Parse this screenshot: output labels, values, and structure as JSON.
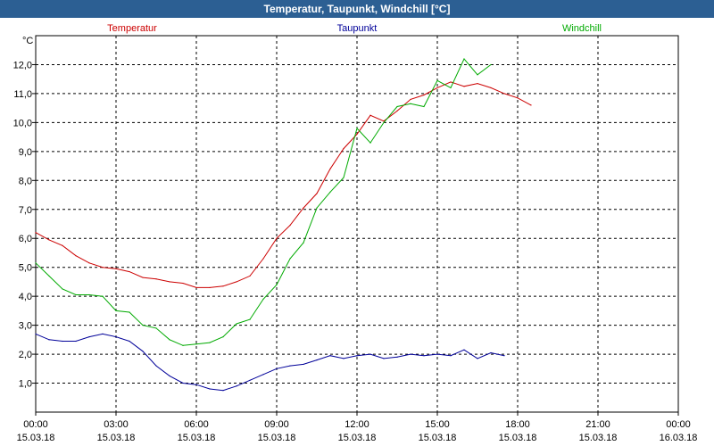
{
  "window": {
    "title": "Temperatur, Taupunkt, Windchill [°C]"
  },
  "chart_data": {
    "type": "line",
    "title": "Temperatur, Taupunkt, Windchill [°C]",
    "ylabel": "°C",
    "ylim": [
      0,
      13
    ],
    "xlim": [
      0,
      24
    ],
    "grid": true,
    "legend": "top",
    "y_ticks": [
      "1,0",
      "2,0",
      "3,0",
      "4,0",
      "5,0",
      "6,0",
      "7,0",
      "8,0",
      "9,0",
      "10,0",
      "11,0",
      "12,0"
    ],
    "x_ticks": [
      {
        "time": "00:00",
        "date": "15.03.18"
      },
      {
        "time": "03:00",
        "date": "15.03.18"
      },
      {
        "time": "06:00",
        "date": "15.03.18"
      },
      {
        "time": "09:00",
        "date": "15.03.18"
      },
      {
        "time": "12:00",
        "date": "15.03.18"
      },
      {
        "time": "15:00",
        "date": "15.03.18"
      },
      {
        "time": "18:00",
        "date": "15.03.18"
      },
      {
        "time": "21:00",
        "date": "15.03.18"
      },
      {
        "time": "00:00",
        "date": "16.03.18"
      }
    ],
    "series": [
      {
        "name": "Temperatur",
        "color": "#cc0000",
        "points": [
          [
            0,
            6.2
          ],
          [
            0.5,
            5.95
          ],
          [
            1,
            5.75
          ],
          [
            1.5,
            5.4
          ],
          [
            2,
            5.15
          ],
          [
            2.5,
            5.0
          ],
          [
            3,
            4.95
          ],
          [
            3.5,
            4.85
          ],
          [
            4,
            4.65
          ],
          [
            4.5,
            4.6
          ],
          [
            5,
            4.5
          ],
          [
            5.5,
            4.45
          ],
          [
            6,
            4.3
          ],
          [
            6.5,
            4.3
          ],
          [
            7,
            4.35
          ],
          [
            7.5,
            4.5
          ],
          [
            8,
            4.7
          ],
          [
            8.5,
            5.3
          ],
          [
            9,
            6.0
          ],
          [
            9.5,
            6.45
          ],
          [
            10,
            7.05
          ],
          [
            10.5,
            7.55
          ],
          [
            11,
            8.4
          ],
          [
            11.5,
            9.1
          ],
          [
            12,
            9.6
          ],
          [
            12.5,
            10.25
          ],
          [
            13,
            10.05
          ],
          [
            13.5,
            10.4
          ],
          [
            14,
            10.8
          ],
          [
            14.5,
            10.95
          ],
          [
            15,
            11.2
          ],
          [
            15.5,
            11.4
          ],
          [
            16,
            11.25
          ],
          [
            16.5,
            11.35
          ],
          [
            17,
            11.2
          ],
          [
            17.5,
            11.0
          ],
          [
            18,
            10.85
          ],
          [
            18.5,
            10.6
          ]
        ]
      },
      {
        "name": "Taupunkt",
        "color": "#000099",
        "points": [
          [
            0,
            2.7
          ],
          [
            0.5,
            2.5
          ],
          [
            1,
            2.45
          ],
          [
            1.5,
            2.45
          ],
          [
            2,
            2.6
          ],
          [
            2.5,
            2.7
          ],
          [
            3,
            2.6
          ],
          [
            3.5,
            2.45
          ],
          [
            4,
            2.1
          ],
          [
            4.5,
            1.6
          ],
          [
            5,
            1.25
          ],
          [
            5.5,
            1.0
          ],
          [
            6,
            0.95
          ],
          [
            6.5,
            0.8
          ],
          [
            7,
            0.75
          ],
          [
            7.5,
            0.9
          ],
          [
            8,
            1.1
          ],
          [
            8.5,
            1.3
          ],
          [
            9,
            1.5
          ],
          [
            9.5,
            1.6
          ],
          [
            10,
            1.65
          ],
          [
            10.5,
            1.8
          ],
          [
            11,
            1.95
          ],
          [
            11.5,
            1.85
          ],
          [
            12,
            1.95
          ],
          [
            12.5,
            2.0
          ],
          [
            13,
            1.85
          ],
          [
            13.5,
            1.9
          ],
          [
            14,
            2.0
          ],
          [
            14.5,
            1.95
          ],
          [
            15,
            2.0
          ],
          [
            15.5,
            1.95
          ],
          [
            16,
            2.15
          ],
          [
            16.5,
            1.85
          ],
          [
            17,
            2.05
          ],
          [
            17.5,
            1.95
          ]
        ]
      },
      {
        "name": "Windchill",
        "color": "#00aa00",
        "points": [
          [
            0,
            5.15
          ],
          [
            0.5,
            4.7
          ],
          [
            1,
            4.25
          ],
          [
            1.5,
            4.05
          ],
          [
            2,
            4.05
          ],
          [
            2.5,
            4.0
          ],
          [
            3,
            3.5
          ],
          [
            3.5,
            3.45
          ],
          [
            4,
            3.0
          ],
          [
            4.5,
            2.9
          ],
          [
            5,
            2.5
          ],
          [
            5.5,
            2.3
          ],
          [
            6,
            2.35
          ],
          [
            6.5,
            2.4
          ],
          [
            7,
            2.6
          ],
          [
            7.5,
            3.05
          ],
          [
            8,
            3.2
          ],
          [
            8.5,
            3.9
          ],
          [
            9,
            4.4
          ],
          [
            9.5,
            5.3
          ],
          [
            10,
            5.85
          ],
          [
            10.5,
            7.05
          ],
          [
            11,
            7.6
          ],
          [
            11.5,
            8.1
          ],
          [
            12,
            9.8
          ],
          [
            12.5,
            9.3
          ],
          [
            13,
            10.0
          ],
          [
            13.5,
            10.55
          ],
          [
            14,
            10.65
          ],
          [
            14.5,
            10.55
          ],
          [
            15,
            11.45
          ],
          [
            15.5,
            11.2
          ],
          [
            16,
            12.2
          ],
          [
            16.5,
            11.65
          ],
          [
            17,
            12.0
          ]
        ]
      }
    ]
  }
}
